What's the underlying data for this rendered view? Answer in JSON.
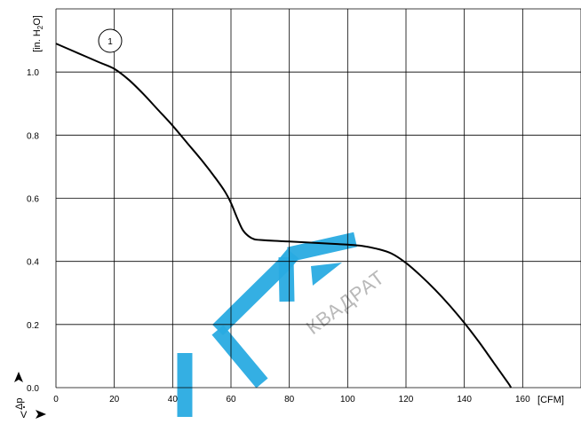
{
  "chart_data": {
    "type": "line",
    "title": "",
    "xlabel": "[CFM]",
    "ylabel_prefix": "[in. H",
    "ylabel_sub": "2",
    "ylabel_suffix": "O]",
    "x_axis_symbol": "V",
    "y_axis_symbol": "Δp",
    "xlim": [
      0,
      180
    ],
    "ylim": [
      0,
      1.2
    ],
    "xticks": [
      0,
      20,
      40,
      60,
      80,
      100,
      120,
      140,
      160
    ],
    "xtick_labels": [
      "0",
      "20",
      "40",
      "60",
      "80",
      "100",
      "120",
      "140",
      "160"
    ],
    "yticks": [
      0.0,
      0.2,
      0.4,
      0.6,
      0.8,
      1.0
    ],
    "ytick_labels": [
      "0.0",
      "0.2",
      "0.4",
      "0.6",
      "0.8",
      "1.0"
    ],
    "grid": true,
    "series": [
      {
        "name": "1",
        "color": "#000000",
        "x": [
          0,
          5,
          10,
          15,
          20,
          25,
          30,
          35,
          40,
          45,
          50,
          55,
          58,
          60,
          62,
          64,
          66,
          68,
          70,
          75,
          80,
          90,
          100,
          105,
          110,
          115,
          120,
          125,
          130,
          135,
          140,
          145,
          150,
          155,
          156
        ],
        "y": [
          1.09,
          1.07,
          1.05,
          1.03,
          1.01,
          0.975,
          0.93,
          0.88,
          0.83,
          0.775,
          0.72,
          0.66,
          0.62,
          0.585,
          0.54,
          0.5,
          0.48,
          0.47,
          0.468,
          0.465,
          0.463,
          0.458,
          0.453,
          0.449,
          0.44,
          0.425,
          0.395,
          0.355,
          0.31,
          0.26,
          0.205,
          0.145,
          0.08,
          0.015,
          0.0
        ]
      }
    ],
    "curve_label": "1",
    "watermark": "КВАДРАТ",
    "watermark_color": "#29abe2"
  }
}
